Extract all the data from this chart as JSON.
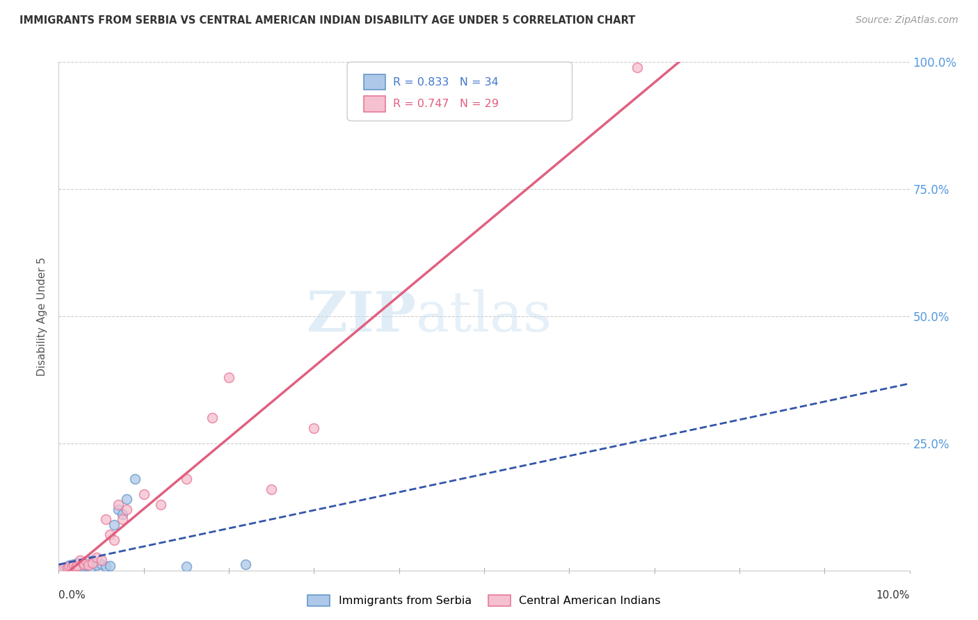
{
  "title": "IMMIGRANTS FROM SERBIA VS CENTRAL AMERICAN INDIAN DISABILITY AGE UNDER 5 CORRELATION CHART",
  "source": "Source: ZipAtlas.com",
  "ylabel": "Disability Age Under 5",
  "xlim": [
    0.0,
    10.0
  ],
  "ylim": [
    0.0,
    100.0
  ],
  "yticks": [
    0,
    25,
    50,
    75,
    100
  ],
  "ytick_labels": [
    "",
    "25.0%",
    "50.0%",
    "75.0%",
    "100.0%"
  ],
  "serbia_color": "#adc8e8",
  "serbia_edge": "#6699cc",
  "central_color": "#f5c0d0",
  "central_edge": "#e87898",
  "trendline_serbia_color": "#3355aa",
  "trendline_central_color": "#e06080",
  "watermark_zip": "ZIP",
  "watermark_atlas": "atlas",
  "serbia_points_x": [
    0.05,
    0.08,
    0.1,
    0.12,
    0.13,
    0.14,
    0.15,
    0.16,
    0.17,
    0.18,
    0.19,
    0.2,
    0.21,
    0.22,
    0.23,
    0.25,
    0.27,
    0.28,
    0.3,
    0.32,
    0.35,
    0.38,
    0.4,
    0.45,
    0.5,
    0.55,
    0.6,
    0.65,
    0.7,
    0.75,
    0.8,
    0.9,
    1.5,
    2.2
  ],
  "serbia_points_y": [
    0.3,
    0.5,
    0.8,
    0.4,
    1.0,
    0.6,
    0.7,
    0.9,
    1.2,
    0.5,
    0.8,
    1.0,
    0.6,
    1.5,
    0.7,
    1.2,
    1.0,
    0.8,
    1.5,
    0.9,
    1.3,
    0.7,
    2.0,
    1.0,
    1.2,
    0.8,
    0.9,
    9.0,
    12.0,
    11.0,
    14.0,
    18.0,
    0.8,
    1.2
  ],
  "central_points_x": [
    0.05,
    0.1,
    0.12,
    0.15,
    0.18,
    0.2,
    0.22,
    0.25,
    0.28,
    0.3,
    0.32,
    0.35,
    0.4,
    0.45,
    0.5,
    0.55,
    0.6,
    0.65,
    0.7,
    0.75,
    0.8,
    1.0,
    1.2,
    1.5,
    1.8,
    2.0,
    2.5,
    3.0,
    6.8
  ],
  "central_points_y": [
    0.3,
    0.5,
    0.8,
    0.6,
    1.0,
    0.7,
    0.9,
    2.0,
    1.5,
    1.2,
    1.8,
    1.0,
    1.5,
    2.5,
    2.0,
    10.0,
    7.0,
    6.0,
    13.0,
    10.0,
    12.0,
    15.0,
    13.0,
    18.0,
    30.0,
    38.0,
    16.0,
    28.0,
    99.0
  ]
}
